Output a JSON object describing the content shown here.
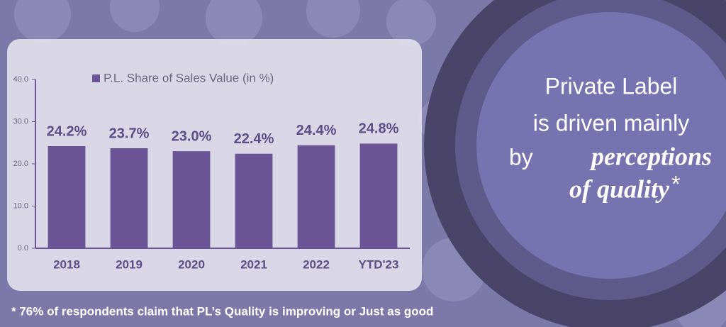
{
  "chart_data": {
    "type": "bar",
    "categories": [
      "2018",
      "2019",
      "2020",
      "2021",
      "2022",
      "YTD'23"
    ],
    "series": [
      {
        "name": "P.L. Share of Sales Value (in %)",
        "color": "#6a5496",
        "values": [
          24.2,
          23.7,
          23.0,
          22.4,
          24.4,
          24.8
        ],
        "value_labels": [
          "24.2%",
          "23.7%",
          "23.0%",
          "22.4%",
          "24.4%",
          "24.8%"
        ]
      }
    ],
    "ylim": [
      0,
      40
    ],
    "yticks": [
      {
        "value": 0,
        "label": "0.0"
      },
      {
        "value": 10,
        "label": "10.0"
      },
      {
        "value": 20,
        "label": "20.0"
      },
      {
        "value": 30,
        "label": "30.0"
      },
      {
        "value": 40,
        "label": "40.0"
      }
    ],
    "legend": "top-left"
  },
  "callout": {
    "line1": "Private Label",
    "line2": "is driven mainly",
    "line3_prefix": "by",
    "line3_emphasis": "perceptions",
    "line4_emphasis": "of quality",
    "line4_suffix": "*"
  },
  "footnote": "* 76% of respondents claim that PL’s Quality is improving or Just as good"
}
